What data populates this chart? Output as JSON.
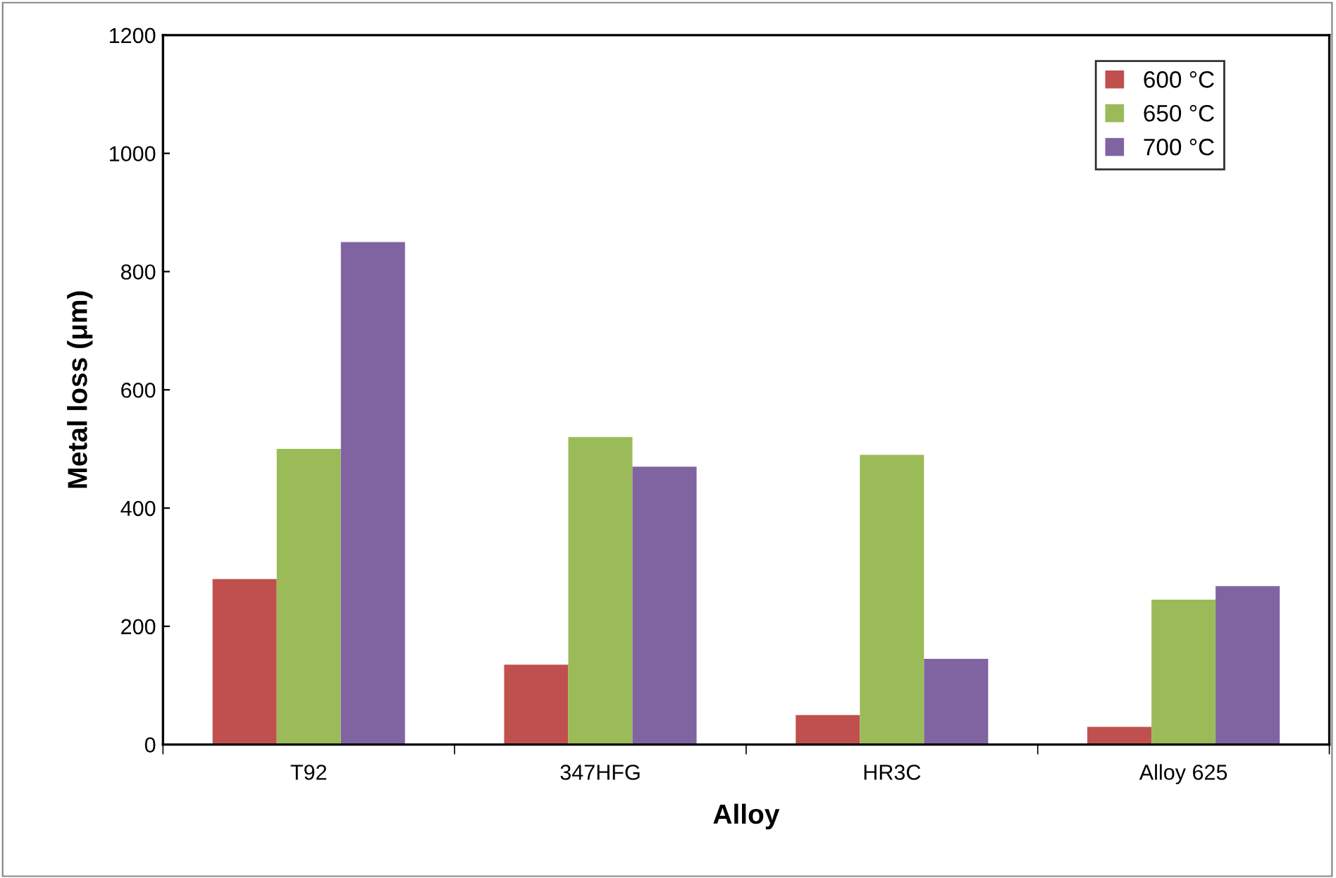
{
  "chart_data": {
    "type": "bar",
    "xlabel": "Alloy",
    "ylabel": "Metal loss (μm)",
    "categories": [
      "T92",
      "347HFG",
      "HR3C",
      "Alloy 625"
    ],
    "series": [
      {
        "name": "600 °C",
        "color": "#c0504d",
        "values": [
          280,
          135,
          50,
          30
        ]
      },
      {
        "name": "650 °C",
        "color": "#9bbb59",
        "values": [
          500,
          520,
          490,
          245
        ]
      },
      {
        "name": "700 °C",
        "color": "#8064a2",
        "values": [
          850,
          470,
          145,
          268
        ]
      }
    ],
    "ylim": [
      0,
      1200
    ],
    "yticks": [
      0,
      200,
      400,
      600,
      800,
      1000,
      1200
    ],
    "grid": false,
    "legend": "top right"
  }
}
